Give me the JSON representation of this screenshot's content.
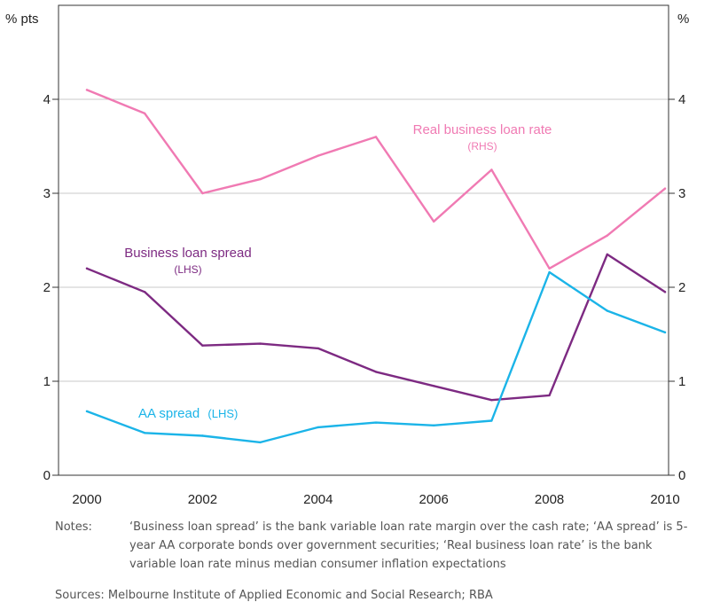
{
  "chart_data": {
    "type": "line",
    "left_axis_label": "% pts",
    "right_axis_label": "%",
    "ylim": [
      0,
      5
    ],
    "xlim": [
      2000,
      2010
    ],
    "yticks": [
      0,
      1,
      2,
      3,
      4
    ],
    "xticks": [
      2000,
      2002,
      2004,
      2006,
      2008,
      2010
    ],
    "grid": true,
    "series": [
      {
        "key": "real",
        "color": "#f07ab3",
        "label_main": "Real business loan rate",
        "label_sub": "(RHS)",
        "x": [
          2000,
          2001,
          2002,
          2003,
          2004,
          2005,
          2006,
          2007,
          2008,
          2009,
          2010
        ],
        "values": [
          4.1,
          3.85,
          3.0,
          3.15,
          3.4,
          3.6,
          2.7,
          3.25,
          2.2,
          2.55,
          3.05
        ]
      },
      {
        "key": "business",
        "color": "#7d2a82",
        "label_main": "Business loan spread",
        "label_sub": "(LHS)",
        "x": [
          2000,
          2001,
          2002,
          2003,
          2004,
          2005,
          2006,
          2007,
          2008,
          2009,
          2010
        ],
        "values": [
          2.2,
          1.95,
          1.38,
          1.4,
          1.35,
          1.1,
          0.95,
          0.8,
          0.85,
          2.35,
          1.95
        ]
      },
      {
        "key": "aa",
        "color": "#1bb4e8",
        "label_main": "AA spread",
        "label_sub": "(LHS)",
        "x": [
          2000,
          2001,
          2002,
          2003,
          2004,
          2005,
          2006,
          2007,
          2008,
          2009,
          2010
        ],
        "values": [
          0.68,
          0.45,
          0.42,
          0.35,
          0.51,
          0.56,
          0.53,
          0.58,
          2.16,
          1.75,
          1.52
        ]
      }
    ]
  },
  "notes": {
    "label": "Notes:",
    "text": "‘Business loan spread’ is the bank variable loan rate margin over the cash rate; ‘AA spread’ is 5-year AA corporate bonds over government securities; ‘Real business loan rate’ is the bank variable loan rate minus median consumer inflation expectations"
  },
  "sources": "Sources: Melbourne Institute of Applied Economic and Social Research; RBA"
}
